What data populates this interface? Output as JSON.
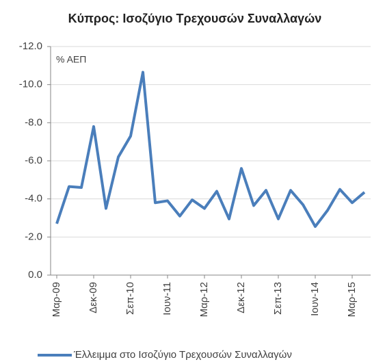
{
  "chart_data": {
    "type": "line",
    "title": "Κύπρος: Ισοζύγιο Τρεχουσών Συναλλαγών",
    "annotation": "% ΑΕΠ",
    "categories": [
      "Μαρ-09",
      null,
      null,
      "Δεκ-09",
      null,
      null,
      "Σεπ-10",
      null,
      null,
      "Ιουν-11",
      null,
      null,
      "Μαρ-12",
      null,
      null,
      "Δεκ-12",
      null,
      null,
      "Σεπ-13",
      null,
      null,
      "Ιουν-14",
      null,
      null,
      "Μαρ-15",
      null
    ],
    "series": [
      {
        "name": "Έλλειμμα στο Ισοζύγιο Τρεχουσών Συναλλαγών",
        "color": "#4a7ebb",
        "values": [
          -2.7,
          -4.65,
          -4.6,
          -7.8,
          -3.5,
          -6.2,
          -7.3,
          -10.65,
          -3.8,
          -3.9,
          -3.1,
          -3.95,
          -3.5,
          -4.4,
          -2.95,
          -5.6,
          -3.65,
          -4.45,
          -2.95,
          -4.45,
          -3.7,
          -2.55,
          -3.4,
          -4.5,
          -3.8,
          -4.35
        ]
      }
    ],
    "ylim": [
      0,
      -12
    ],
    "yticks": [
      {
        "value": 0,
        "label": "0.0"
      },
      {
        "value": -2,
        "label": "-2.0"
      },
      {
        "value": -4,
        "label": "-4.0"
      },
      {
        "value": -6,
        "label": "-6.0"
      },
      {
        "value": -8,
        "label": "-8.0"
      },
      {
        "value": -10,
        "label": "-10.0"
      },
      {
        "value": -12,
        "label": "-12.0"
      }
    ],
    "grid": true
  }
}
